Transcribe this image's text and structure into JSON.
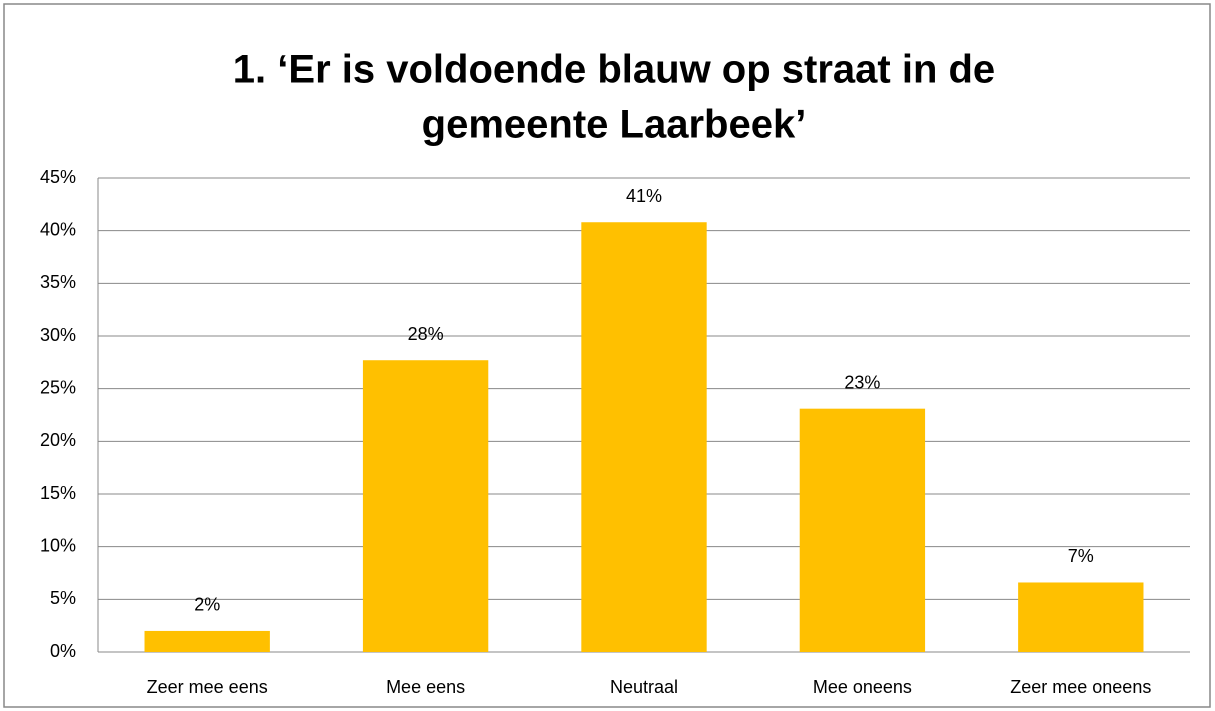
{
  "chart_data": {
    "type": "bar",
    "title": [
      "1. ‘Er is voldoende blauw op straat in de",
      "gemeente Laarbeek’"
    ],
    "categories": [
      "Zeer mee eens",
      "Mee eens",
      "Neutraal",
      "Mee oneens",
      "Zeer mee oneens"
    ],
    "values": [
      2.0,
      27.7,
      40.8,
      23.1,
      6.6
    ],
    "value_labels": [
      "2%",
      "28%",
      "41%",
      "23%",
      "7%"
    ],
    "color": "#ffc000",
    "ylim": [
      0,
      45
    ],
    "yticks": [
      {
        "value": 0,
        "label": "0%"
      },
      {
        "value": 5,
        "label": "5%"
      },
      {
        "value": 10,
        "label": "10%"
      },
      {
        "value": 15,
        "label": "15%"
      },
      {
        "value": 20,
        "label": "20%"
      },
      {
        "value": 25,
        "label": "25%"
      },
      {
        "value": 30,
        "label": "30%"
      },
      {
        "value": 35,
        "label": "35%"
      },
      {
        "value": 40,
        "label": "40%"
      },
      {
        "value": 45,
        "label": "45%"
      }
    ],
    "grid": true
  }
}
